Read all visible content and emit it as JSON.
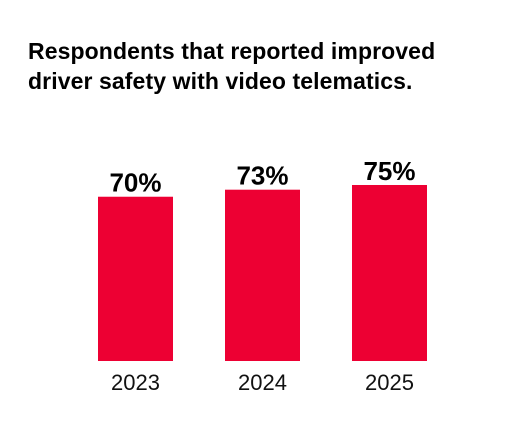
{
  "title": {
    "line1": "Respondents that reported improved",
    "line2": "driver safety with video telematics."
  },
  "colors": {
    "bar": "#ED0033",
    "text": "#000000",
    "background": "#FFFFFF"
  },
  "chart_data": {
    "type": "bar",
    "title": "Respondents that reported improved driver safety with video telematics.",
    "categories": [
      "2023",
      "2024",
      "2025"
    ],
    "values": [
      70,
      73,
      75
    ],
    "value_labels": [
      "70%",
      "73%",
      "75%"
    ],
    "unit": "%",
    "xlabel": "",
    "ylabel": "",
    "grid": false,
    "legend": "none"
  }
}
